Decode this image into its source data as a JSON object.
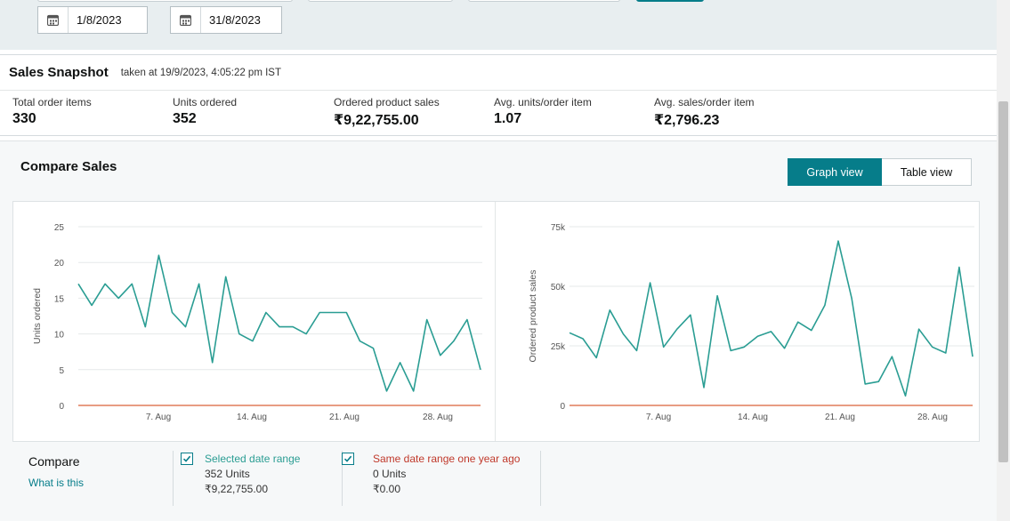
{
  "filters": {
    "start_date": "1/8/2023",
    "end_date": "31/8/2023",
    "calendar_icon": "calendar-icon"
  },
  "snapshot": {
    "title": "Sales Snapshot",
    "taken_at": "taken at 19/9/2023, 4:05:22 pm IST",
    "metrics": [
      {
        "label": "Total order items",
        "value": "330"
      },
      {
        "label": "Units ordered",
        "value": "352"
      },
      {
        "label": "Ordered product sales",
        "value": "₹9,22,755.00"
      },
      {
        "label": "Avg. units/order item",
        "value": "1.07"
      },
      {
        "label": "Avg. sales/order item",
        "value": "₹2,796.23"
      }
    ]
  },
  "compare": {
    "title": "Compare Sales",
    "graph_view_label": "Graph view",
    "table_view_label": "Table view"
  },
  "chart_data": [
    {
      "type": "line",
      "title": "",
      "xlabel": "",
      "ylabel": "Units ordered",
      "x": [
        "1 Aug",
        "2 Aug",
        "3 Aug",
        "4 Aug",
        "5 Aug",
        "6 Aug",
        "7 Aug",
        "8 Aug",
        "9 Aug",
        "10 Aug",
        "11 Aug",
        "12 Aug",
        "13 Aug",
        "14 Aug",
        "15 Aug",
        "16 Aug",
        "17 Aug",
        "18 Aug",
        "19 Aug",
        "20 Aug",
        "21 Aug",
        "22 Aug",
        "23 Aug",
        "24 Aug",
        "25 Aug",
        "26 Aug",
        "27 Aug",
        "28 Aug",
        "29 Aug",
        "30 Aug",
        "31 Aug"
      ],
      "x_ticks": [
        "7. Aug",
        "14. Aug",
        "21. Aug",
        "28. Aug"
      ],
      "y_ticks": [
        "0",
        "5",
        "10",
        "15",
        "20",
        "25"
      ],
      "ylim": [
        0,
        25
      ],
      "grid": true,
      "series": [
        {
          "values": [
            17,
            14,
            17,
            15,
            17,
            11,
            21,
            13,
            11,
            17,
            6,
            18,
            10,
            9,
            13,
            11,
            11,
            10,
            13,
            13,
            13,
            9,
            8,
            2,
            6,
            2,
            12,
            7,
            9,
            12,
            5
          ],
          "color": "#2a9d93"
        },
        {
          "values": [
            0,
            0,
            0,
            0,
            0,
            0,
            0,
            0,
            0,
            0,
            0,
            0,
            0,
            0,
            0,
            0,
            0,
            0,
            0,
            0,
            0,
            0,
            0,
            0,
            0,
            0,
            0,
            0,
            0,
            0,
            0
          ],
          "color": "#e07c5a"
        }
      ]
    },
    {
      "type": "line",
      "title": "",
      "xlabel": "",
      "ylabel": "Ordered product sales",
      "x": [
        "1 Aug",
        "2 Aug",
        "3 Aug",
        "4 Aug",
        "5 Aug",
        "6 Aug",
        "7 Aug",
        "8 Aug",
        "9 Aug",
        "10 Aug",
        "11 Aug",
        "12 Aug",
        "13 Aug",
        "14 Aug",
        "15 Aug",
        "16 Aug",
        "17 Aug",
        "18 Aug",
        "19 Aug",
        "20 Aug",
        "21 Aug",
        "22 Aug",
        "23 Aug",
        "24 Aug",
        "25 Aug",
        "26 Aug",
        "27 Aug",
        "28 Aug",
        "29 Aug",
        "30 Aug",
        "31 Aug"
      ],
      "x_ticks": [
        "7. Aug",
        "14. Aug",
        "21. Aug",
        "28. Aug"
      ],
      "y_ticks": [
        "0",
        "25k",
        "50k",
        "75k"
      ],
      "ylim": [
        0,
        75000
      ],
      "grid": true,
      "series": [
        {
          "values": [
            30500,
            28000,
            20000,
            40000,
            30000,
            23000,
            51500,
            24500,
            32000,
            38000,
            7500,
            46000,
            23000,
            24500,
            29000,
            31000,
            24000,
            35000,
            31500,
            42000,
            69000,
            45000,
            9000,
            10000,
            20500,
            4000,
            32000,
            24500,
            22000,
            58000,
            20500
          ],
          "color": "#2a9d93"
        },
        {
          "values": [
            0,
            0,
            0,
            0,
            0,
            0,
            0,
            0,
            0,
            0,
            0,
            0,
            0,
            0,
            0,
            0,
            0,
            0,
            0,
            0,
            0,
            0,
            0,
            0,
            0,
            0,
            0,
            0,
            0,
            0,
            0
          ],
          "color": "#e07c5a"
        }
      ]
    }
  ],
  "legend": {
    "compare_label": "Compare",
    "what_is_this": "What is this",
    "selected": {
      "name": "Selected date range",
      "units": "352 Units",
      "sales": "₹9,22,755.00",
      "color": "#2a9d93"
    },
    "last_year": {
      "name": "Same date range one year ago",
      "units": "0 Units",
      "sales": "₹0.00",
      "color": "#c0392b"
    }
  }
}
